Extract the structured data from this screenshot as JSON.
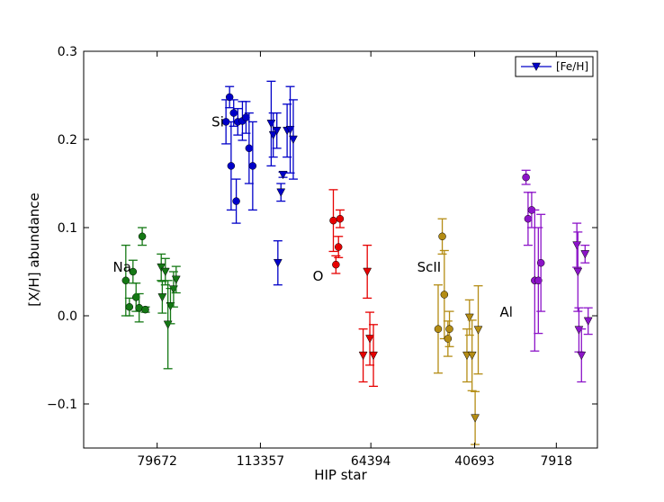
{
  "chart_data": {
    "type": "scatter",
    "title": "",
    "xlabel": "HIP star",
    "ylabel": "[X/H] abundance",
    "ylim": [
      -0.15,
      0.3
    ],
    "yticks": [
      -0.1,
      0.0,
      0.1,
      0.2,
      0.3
    ],
    "ytick_labels": [
      "−0.1",
      "0.0",
      "0.1",
      "0.2",
      "0.3"
    ],
    "xlim": [
      0,
      1
    ],
    "xticks": [
      0.143,
      0.344,
      0.559,
      0.761,
      0.92
    ],
    "xtick_labels": [
      "79672",
      "113357",
      "64394",
      "40693",
      "7918"
    ],
    "grid": false,
    "legend": {
      "position": "top-right",
      "entries": [
        {
          "label": "[Fe/H]",
          "marker": "triangle-down",
          "color": "#0000c8"
        }
      ]
    },
    "series": [
      {
        "name": "Na",
        "color": "#147814",
        "label_pos": {
          "x": 0.057,
          "y": 0.055
        },
        "points": [
          {
            "x": 0.082,
            "y": 0.04,
            "err": 0.04,
            "marker": "circle"
          },
          {
            "x": 0.089,
            "y": 0.01,
            "err": 0.01,
            "marker": "circle"
          },
          {
            "x": 0.096,
            "y": 0.05,
            "err": 0.013,
            "marker": "circle"
          },
          {
            "x": 0.102,
            "y": 0.021,
            "err": 0.016,
            "marker": "circle"
          },
          {
            "x": 0.108,
            "y": 0.009,
            "err": 0.016,
            "marker": "circle"
          },
          {
            "x": 0.114,
            "y": 0.09,
            "err": 0.01,
            "marker": "circle"
          },
          {
            "x": 0.12,
            "y": 0.007,
            "err": 0.003,
            "marker": "circle"
          },
          {
            "x": 0.151,
            "y": 0.055,
            "err": 0.015,
            "marker": "triangle"
          },
          {
            "x": 0.153,
            "y": 0.021,
            "err": 0.018,
            "marker": "triangle"
          },
          {
            "x": 0.159,
            "y": 0.05,
            "err": 0.015,
            "marker": "triangle"
          },
          {
            "x": 0.164,
            "y": -0.01,
            "err": 0.05,
            "marker": "triangle"
          },
          {
            "x": 0.169,
            "y": 0.011,
            "err": 0.02,
            "marker": "triangle"
          },
          {
            "x": 0.175,
            "y": 0.03,
            "err": 0.02,
            "marker": "triangle"
          },
          {
            "x": 0.18,
            "y": 0.041,
            "err": 0.015,
            "marker": "triangle"
          }
        ]
      },
      {
        "name": "Si",
        "color": "#0000c8",
        "label_pos": {
          "x": 0.249,
          "y": 0.22
        },
        "points": [
          {
            "x": 0.277,
            "y": 0.22,
            "err": 0.025,
            "marker": "circle"
          },
          {
            "x": 0.284,
            "y": 0.248,
            "err": 0.012,
            "marker": "circle"
          },
          {
            "x": 0.287,
            "y": 0.17,
            "err": 0.05,
            "marker": "circle"
          },
          {
            "x": 0.292,
            "y": 0.23,
            "err": 0.015,
            "marker": "circle"
          },
          {
            "x": 0.297,
            "y": 0.13,
            "err": 0.025,
            "marker": "circle"
          },
          {
            "x": 0.3,
            "y": 0.22,
            "err": 0.015,
            "marker": "circle"
          },
          {
            "x": 0.309,
            "y": 0.221,
            "err": 0.022,
            "marker": "circle"
          },
          {
            "x": 0.316,
            "y": 0.225,
            "err": 0.018,
            "marker": "circle"
          },
          {
            "x": 0.322,
            "y": 0.19,
            "err": 0.04,
            "marker": "circle"
          },
          {
            "x": 0.329,
            "y": 0.17,
            "err": 0.05,
            "marker": "circle"
          },
          {
            "x": 0.365,
            "y": 0.218,
            "err": 0.048,
            "marker": "triangle"
          },
          {
            "x": 0.369,
            "y": 0.205,
            "err": 0.025,
            "marker": "triangle"
          },
          {
            "x": 0.376,
            "y": 0.21,
            "err": 0.02,
            "marker": "triangle"
          },
          {
            "x": 0.378,
            "y": 0.06,
            "err": 0.025,
            "marker": "triangle"
          },
          {
            "x": 0.384,
            "y": 0.14,
            "err": 0.01,
            "marker": "triangle"
          },
          {
            "x": 0.388,
            "y": 0.16,
            "err": 0.003,
            "marker": "triangle"
          },
          {
            "x": 0.396,
            "y": 0.21,
            "err": 0.03,
            "marker": "triangle"
          },
          {
            "x": 0.402,
            "y": 0.211,
            "err": 0.049,
            "marker": "triangle"
          },
          {
            "x": 0.408,
            "y": 0.2,
            "err": 0.045,
            "marker": "triangle"
          }
        ]
      },
      {
        "name": "O",
        "color": "#e60000",
        "label_pos": {
          "x": 0.446,
          "y": 0.045
        },
        "points": [
          {
            "x": 0.486,
            "y": 0.108,
            "err": 0.035,
            "marker": "circle"
          },
          {
            "x": 0.491,
            "y": 0.058,
            "err": 0.01,
            "marker": "circle"
          },
          {
            "x": 0.496,
            "y": 0.078,
            "err": 0.012,
            "marker": "circle"
          },
          {
            "x": 0.499,
            "y": 0.11,
            "err": 0.01,
            "marker": "circle"
          },
          {
            "x": 0.544,
            "y": -0.045,
            "err": 0.03,
            "marker": "triangle"
          },
          {
            "x": 0.552,
            "y": 0.05,
            "err": 0.03,
            "marker": "triangle"
          },
          {
            "x": 0.557,
            "y": -0.026,
            "err": 0.03,
            "marker": "triangle"
          },
          {
            "x": 0.564,
            "y": -0.045,
            "err": 0.035,
            "marker": "triangle"
          }
        ]
      },
      {
        "name": "ScII",
        "color": "#b48c14",
        "label_pos": {
          "x": 0.649,
          "y": 0.055
        },
        "points": [
          {
            "x": 0.69,
            "y": -0.015,
            "err": 0.05,
            "marker": "circle"
          },
          {
            "x": 0.698,
            "y": 0.09,
            "err": 0.02,
            "marker": "circle"
          },
          {
            "x": 0.702,
            "y": 0.024,
            "err": 0.05,
            "marker": "circle"
          },
          {
            "x": 0.709,
            "y": -0.026,
            "err": 0.02,
            "marker": "circle"
          },
          {
            "x": 0.712,
            "y": -0.015,
            "err": 0.02,
            "marker": "circle"
          },
          {
            "x": 0.746,
            "y": -0.045,
            "err": 0.03,
            "marker": "triangle"
          },
          {
            "x": 0.751,
            "y": -0.002,
            "err": 0.02,
            "marker": "triangle"
          },
          {
            "x": 0.756,
            "y": -0.045,
            "err": 0.04,
            "marker": "triangle"
          },
          {
            "x": 0.762,
            "y": -0.116,
            "err": 0.03,
            "marker": "triangle"
          },
          {
            "x": 0.768,
            "y": -0.016,
            "err": 0.05,
            "marker": "triangle"
          }
        ]
      },
      {
        "name": "Al",
        "color": "#8c14c8",
        "label_pos": {
          "x": 0.81,
          "y": 0.004
        },
        "points": [
          {
            "x": 0.861,
            "y": 0.157,
            "err": 0.008,
            "marker": "circle"
          },
          {
            "x": 0.865,
            "y": 0.11,
            "err": 0.03,
            "marker": "circle"
          },
          {
            "x": 0.872,
            "y": 0.12,
            "err": 0.02,
            "marker": "circle"
          },
          {
            "x": 0.878,
            "y": 0.04,
            "err": 0.08,
            "marker": "circle"
          },
          {
            "x": 0.885,
            "y": 0.04,
            "err": 0.06,
            "marker": "circle"
          },
          {
            "x": 0.89,
            "y": 0.06,
            "err": 0.055,
            "marker": "circle"
          },
          {
            "x": 0.96,
            "y": 0.08,
            "err": 0.025,
            "marker": "triangle"
          },
          {
            "x": 0.962,
            "y": 0.05,
            "err": 0.045,
            "marker": "triangle"
          },
          {
            "x": 0.964,
            "y": -0.016,
            "err": 0.025,
            "marker": "triangle"
          },
          {
            "x": 0.969,
            "y": -0.045,
            "err": 0.03,
            "marker": "triangle"
          },
          {
            "x": 0.976,
            "y": 0.07,
            "err": 0.01,
            "marker": "triangle"
          },
          {
            "x": 0.982,
            "y": -0.006,
            "err": 0.015,
            "marker": "triangle"
          }
        ]
      }
    ]
  }
}
